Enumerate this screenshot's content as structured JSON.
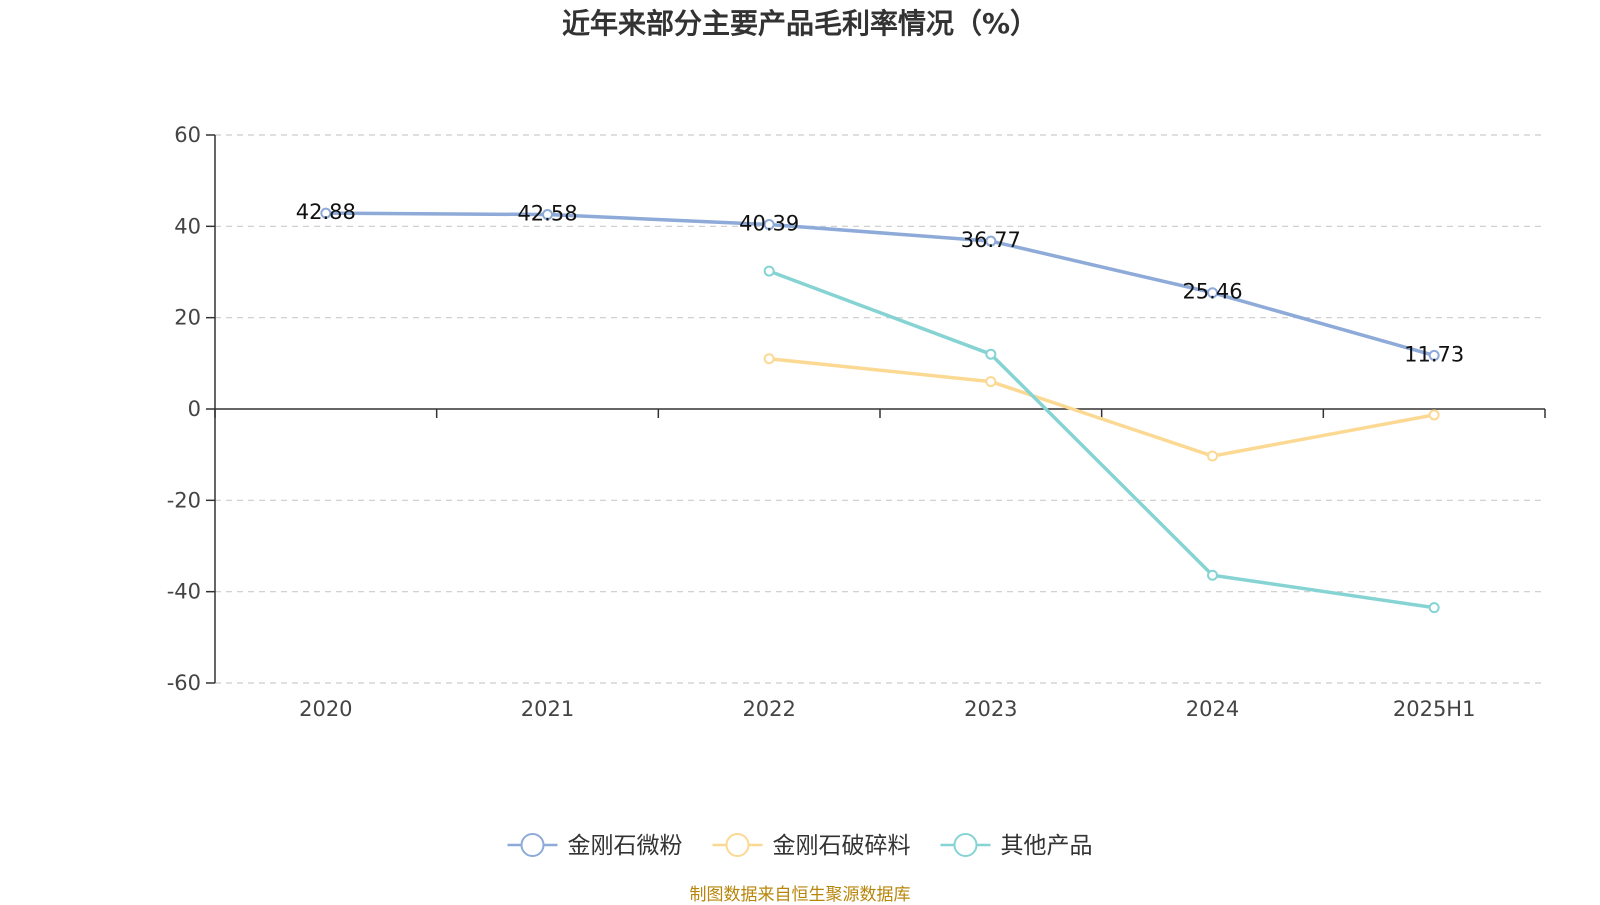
{
  "chart_data": {
    "type": "line",
    "title": "近年来部分主要产品毛利率情况（%）",
    "categories": [
      "2020",
      "2021",
      "2022",
      "2023",
      "2024",
      "2025H1"
    ],
    "ylim": [
      -60,
      60
    ],
    "yticks": [
      60,
      40,
      20,
      0,
      -20,
      -40,
      -60
    ],
    "grid": true,
    "legend_position": "bottom",
    "series": [
      {
        "name": "金刚石微粉",
        "color": "#8eaad8",
        "values": [
          42.88,
          42.58,
          40.39,
          36.77,
          25.46,
          11.73
        ],
        "labels": [
          "42.88",
          "42.58",
          "40.39",
          "36.77",
          "25.46",
          "11.73"
        ]
      },
      {
        "name": "金刚石破碎料",
        "color": "#fcd993",
        "values": [
          null,
          null,
          11.0,
          6.0,
          -10.3,
          -1.3
        ]
      },
      {
        "name": "其他产品",
        "color": "#86d3d3",
        "values": [
          null,
          null,
          30.2,
          12.0,
          -36.4,
          -43.5
        ]
      }
    ]
  },
  "source_note": "制图数据来自恒生聚源数据库"
}
